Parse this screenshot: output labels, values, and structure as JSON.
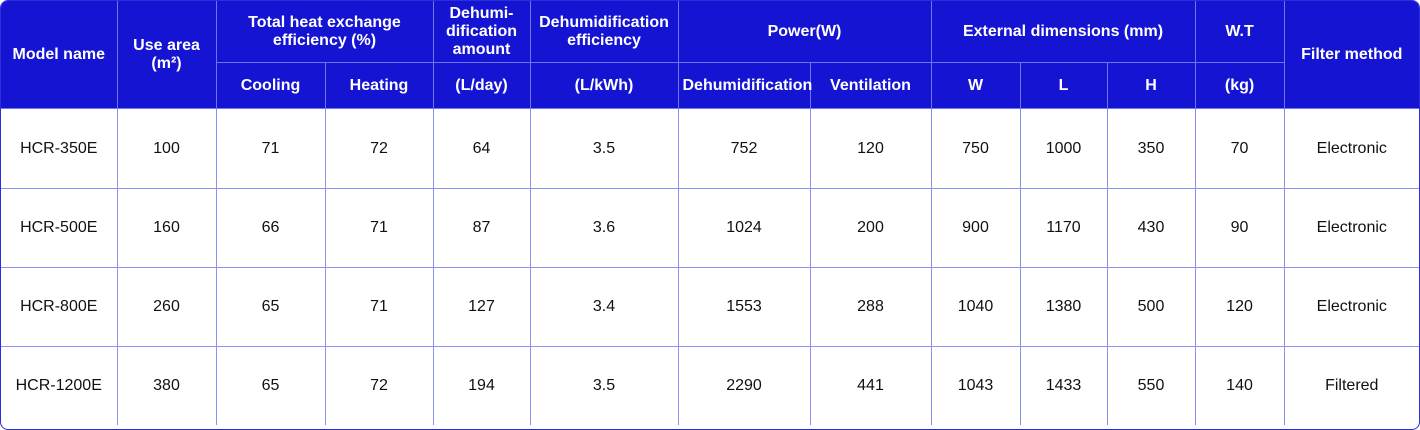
{
  "table": {
    "headers": {
      "model_name": "Model name",
      "use_area": "Use area",
      "use_area_unit": "(m²)",
      "total_heat_exchange": "Total heat exchange efficiency (%)",
      "cooling": "Cooling",
      "heating": "Heating",
      "dehumidification_amount": "Dehumi-dification amount",
      "dehumidification_amount_unit": "(L/day)",
      "dehumidification_efficiency": "Dehumidification efficiency",
      "dehumidification_efficiency_unit": "(L/kWh)",
      "power": "Power(W)",
      "power_dehumidification": "Dehumidification",
      "power_ventilation": "Ventilation",
      "external_dimensions": "External dimensions (mm)",
      "dim_w": "W",
      "dim_l": "L",
      "dim_h": "H",
      "weight": "W.T",
      "weight_unit": "(kg)",
      "filter_method": "Filter method"
    },
    "rows": [
      {
        "model": "HCR-350E",
        "area": "100",
        "cooling": "71",
        "heating": "72",
        "dehum_amount": "64",
        "dehum_eff": "3.5",
        "power_dehum": "752",
        "power_vent": "120",
        "w": "750",
        "l": "1000",
        "h": "350",
        "weight": "70",
        "filter": "Electronic"
      },
      {
        "model": "HCR-500E",
        "area": "160",
        "cooling": "66",
        "heating": "71",
        "dehum_amount": "87",
        "dehum_eff": "3.6",
        "power_dehum": "1024",
        "power_vent": "200",
        "w": "900",
        "l": "1170",
        "h": "430",
        "weight": "90",
        "filter": "Electronic"
      },
      {
        "model": "HCR-800E",
        "area": "260",
        "cooling": "65",
        "heating": "71",
        "dehum_amount": "127",
        "dehum_eff": "3.4",
        "power_dehum": "1553",
        "power_vent": "288",
        "w": "1040",
        "l": "1380",
        "h": "500",
        "weight": "120",
        "filter": "Electronic"
      },
      {
        "model": "HCR-1200E",
        "area": "380",
        "cooling": "65",
        "heating": "72",
        "dehum_amount": "194",
        "dehum_eff": "3.5",
        "power_dehum": "2290",
        "power_vent": "441",
        "w": "1043",
        "l": "1433",
        "h": "550",
        "weight": "140",
        "filter": "Filtered"
      }
    ]
  },
  "colors": {
    "header_bg": "#1414d2",
    "header_text": "#ffffff",
    "border": "#8c92f2",
    "body_text": "#111111"
  }
}
